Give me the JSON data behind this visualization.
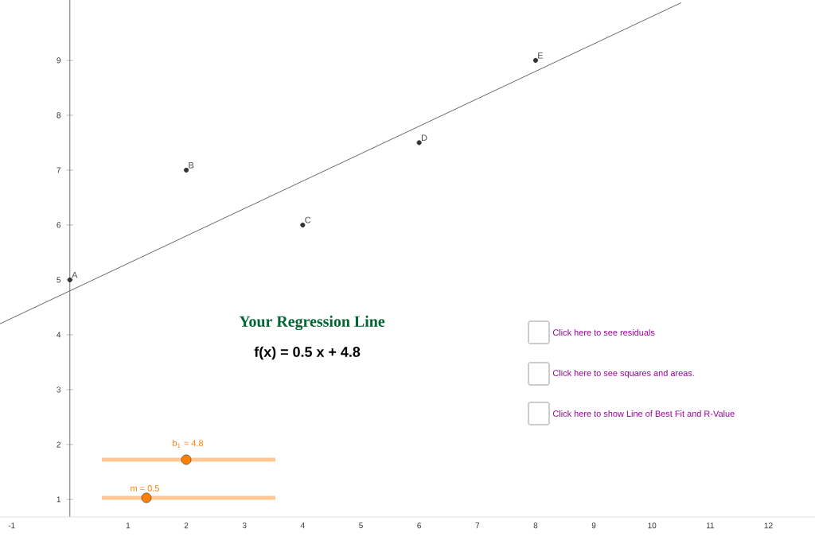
{
  "chart_data": {
    "type": "scatter",
    "title": "Your Regression Line",
    "subtitle": "f(x) = 0.5 x + 4.8",
    "series": [
      {
        "color": "#333333",
        "marker": "circle",
        "x": [
          0,
          2,
          4,
          6,
          8
        ],
        "values": [
          5,
          7,
          6,
          7.5,
          9
        ]
      },
      {
        "type": "line",
        "color": "#666666",
        "marker": "none",
        "x": [
          -1.2,
          10.5
        ],
        "values": [
          4.2,
          10.05
        ]
      }
    ],
    "xlim": [
      -1.2,
      12.8
    ],
    "ylim": [
      0.68,
      10.1
    ],
    "xticks": [
      -1,
      1,
      2,
      3,
      4,
      5,
      6,
      7,
      8,
      9,
      10,
      11,
      12
    ],
    "yticks": [
      1,
      2,
      3,
      4,
      5,
      6,
      7,
      8,
      9
    ],
    "grid": false,
    "annotations": [
      {
        "text": "A",
        "x": 0,
        "y": 5
      },
      {
        "text": "B",
        "x": 2,
        "y": 7
      },
      {
        "text": "C",
        "x": 4,
        "y": 6
      },
      {
        "text": "D",
        "x": 6,
        "y": 7.5
      },
      {
        "text": "E",
        "x": 8,
        "y": 9
      },
      "b$_{1}$ = 4.8",
      "m = 0.5",
      "Click here to see residuals",
      "Click here to see squares and areas.",
      "Click here to show Line of Best Fit and R-Value"
    ]
  }
}
